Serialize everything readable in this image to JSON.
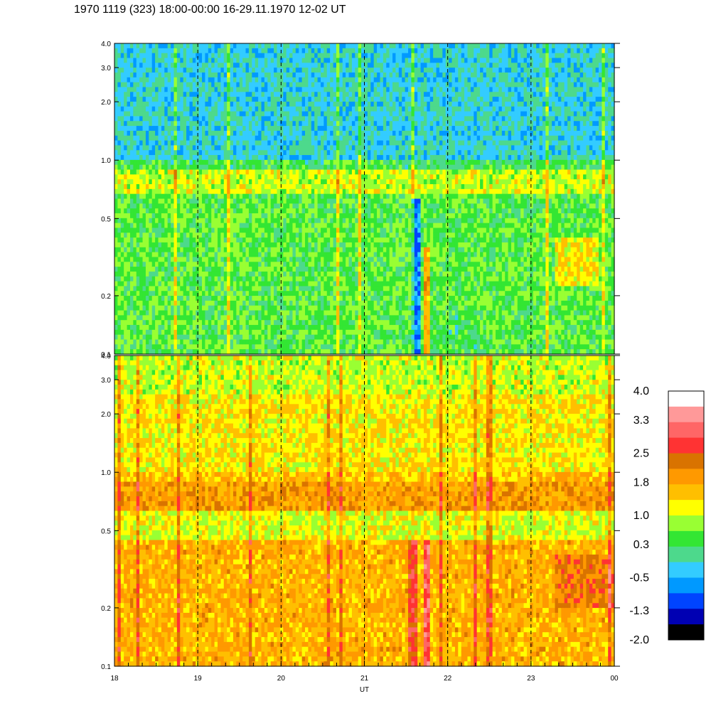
{
  "title": "1970 1119 (323) 18:00-00:00 16-29.11.1970  12-02 UT",
  "chart_data": {
    "type": "heatmap",
    "xlabel": "UT",
    "x_ticks": [
      "18",
      "19",
      "20",
      "21",
      "22",
      "23",
      "00"
    ],
    "x_range": [
      18,
      24
    ],
    "y_range": [
      0.1,
      4.0
    ],
    "y_scale": "log",
    "y_ticks": [
      "0.1",
      "0.2",
      "0.5",
      "1.0",
      "2.0",
      "3.0",
      "4.0"
    ],
    "panels": [
      {
        "name": "upper",
        "base_level": 0.3,
        "bands": [
          {
            "y_from": 1.0,
            "y_to": 4.0,
            "level": -0.2
          },
          {
            "y_from": 0.68,
            "y_to": 0.88,
            "level": 1.0
          },
          {
            "y_from": 0.1,
            "y_to": 0.68,
            "level": 0.5
          }
        ],
        "features": [
          {
            "x_from": 21.55,
            "x_to": 21.68,
            "y_from": 0.1,
            "y_to": 0.65,
            "level": -0.7
          },
          {
            "x_from": 21.72,
            "x_to": 21.8,
            "y_from": 0.1,
            "y_to": 0.35,
            "level": 1.8
          },
          {
            "x_from": 22.0,
            "x_to": 22.4,
            "y_from": 0.1,
            "y_to": 0.17,
            "level": 0.3
          },
          {
            "x_from": 23.3,
            "x_to": 23.8,
            "y_from": 0.22,
            "y_to": 0.4,
            "level": 1.3
          }
        ]
      },
      {
        "name": "lower",
        "base_level": 1.6,
        "bands": [
          {
            "y_from": 2.5,
            "y_to": 4.0,
            "level": 1.0
          },
          {
            "y_from": 1.0,
            "y_to": 2.5,
            "level": 1.3
          },
          {
            "y_from": 0.65,
            "y_to": 0.88,
            "level": 1.9
          },
          {
            "y_from": 0.45,
            "y_to": 0.65,
            "level": 1.1
          },
          {
            "y_from": 0.1,
            "y_to": 0.45,
            "level": 1.7
          }
        ],
        "features": [
          {
            "x_from": 21.53,
            "x_to": 21.64,
            "y_from": 0.1,
            "y_to": 0.45,
            "level": 2.6
          },
          {
            "x_from": 21.73,
            "x_to": 21.8,
            "y_from": 0.1,
            "y_to": 0.45,
            "level": 3.0
          },
          {
            "x_from": 23.3,
            "x_to": 24.0,
            "y_from": 0.2,
            "y_to": 0.38,
            "level": 2.2
          }
        ]
      }
    ],
    "colorbar": {
      "labels": [
        "4.0",
        "3.3",
        "2.5",
        "1.8",
        "1.0",
        "0.3",
        "-0.5",
        "-1.3",
        "-2.0"
      ],
      "range": [
        -2.0,
        4.0
      ],
      "colors": [
        "#ffffff",
        "#ff9999",
        "#ff6666",
        "#ff3333",
        "#d97300",
        "#ff9900",
        "#ffbf00",
        "#ffff00",
        "#99ff33",
        "#33e633",
        "#4dd98c",
        "#33ccff",
        "#0099ff",
        "#0044ff",
        "#0000b3",
        "#000000"
      ]
    },
    "grid": "vertical dashed lines at hour ticks"
  }
}
